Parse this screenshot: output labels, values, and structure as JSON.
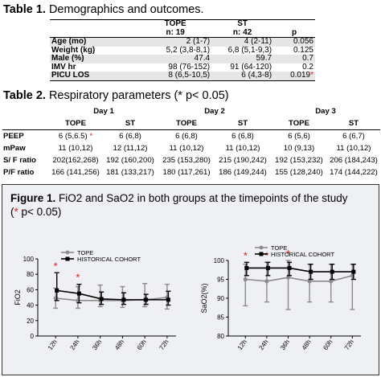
{
  "table1": {
    "title_bold": "Table 1.",
    "title_rest": " Demographics and outcomes.",
    "headers": {
      "tope": "TOPE",
      "tope_n": "n: 19",
      "st": "ST",
      "st_n": "n: 42",
      "p": "p"
    },
    "rows": [
      {
        "label": "Age (mo)",
        "tope": "2 (1-7)",
        "st": "4 (2-11)",
        "p": "0.056",
        "star": ""
      },
      {
        "label": "Weight (kg)",
        "tope": "5,2 (3,8-8,1)",
        "st": "6,8 (5,1-9,3)",
        "p": "0.125",
        "star": ""
      },
      {
        "label": "Male (%)",
        "tope": "47.4",
        "st": "59.7",
        "p": "0.7",
        "star": ""
      },
      {
        "label": "IMV hr",
        "tope": "98 (76-152)",
        "st": "91 (64-120)",
        "p": "0.2",
        "star": ""
      },
      {
        "label": "PICU LOS",
        "tope": "8 (6,5-10,5)",
        "st": "6 (4,3-8)",
        "p": "0.019",
        "star": "*"
      }
    ]
  },
  "table2": {
    "title_bold": "Table 2.",
    "title_rest": " Respiratory parameters (* p< 0.05)",
    "days": [
      "Day 1",
      "Day 2",
      "Day 3"
    ],
    "cols": [
      "TOPE",
      "ST",
      "TOPE",
      "ST",
      "TOPE",
      "ST"
    ],
    "rows": [
      {
        "label": "PEEP",
        "cells": [
          "6 (5,6.5)",
          "6 (6,8)",
          "6 (6,8)",
          "6 (6,8)",
          "6 (5,6)",
          "6 (6,7)"
        ],
        "star_col": 0
      },
      {
        "label": "mPaw",
        "cells": [
          "11 (10,12)",
          "12 (11,12)",
          "11 (10,12)",
          "11 (10,12)",
          "10 (9,13)",
          "11 (10,12)"
        ],
        "star_col": -1
      },
      {
        "label": "S/ F ratio",
        "cells": [
          "202(162,268)",
          "192 (160,200)",
          "235 (153,280)",
          "215 (190,242)",
          "192 (153,232)",
          "206 (184,243)"
        ],
        "star_col": -1
      },
      {
        "label": "P/F ratio",
        "cells": [
          "166 (141,256)",
          "181 (133,217)",
          "180 (117,261)",
          "186 (149,244)",
          "155 (128,240)",
          "174 (144,222)"
        ],
        "star_col": -1
      }
    ],
    "star": "*"
  },
  "figure1": {
    "title_bold": "Figure 1.",
    "title_rest": " FiO2 and SaO2 in both groups at the timepoints of the study",
    "title_line2_open": "(",
    "title_star": "*",
    "title_line2_rest": " p< 0.05)",
    "colors": {
      "tope": "#8c8c8c",
      "historical": "#000000",
      "star": "#e01b1b"
    }
  },
  "chart_data": [
    {
      "type": "line",
      "ylabel": "FiO2",
      "ylim": [
        0,
        100
      ],
      "yticks": [
        "0",
        "20",
        "40",
        "60",
        "80",
        "100"
      ],
      "categories": [
        "12h",
        "24h",
        "36h",
        "48h",
        "60h",
        "72h"
      ],
      "legend_position": "top-left",
      "series": [
        {
          "name": "TOPE",
          "values": [
            49,
            46,
            46,
            46,
            47,
            50
          ],
          "err_low": [
            36,
            36,
            38,
            37,
            38,
            35
          ],
          "err_high": [
            62,
            64,
            66,
            64,
            68,
            67
          ]
        },
        {
          "name": "HISTORICAL COHORT",
          "values": [
            59,
            55,
            48,
            47,
            47,
            47
          ],
          "err_low": [
            46,
            43,
            41,
            41,
            41,
            40
          ],
          "err_high": [
            82,
            67,
            57,
            56,
            54,
            58
          ]
        }
      ],
      "significant_at": [
        "12h",
        "24h"
      ]
    },
    {
      "type": "line",
      "ylabel": "SaO2(%)",
      "ylim": [
        80,
        100
      ],
      "yticks": [
        "80",
        "85",
        "90",
        "95",
        "100"
      ],
      "categories": [
        "12h",
        "24h",
        "36h",
        "48h",
        "60h",
        "72h"
      ],
      "legend_position": "top-left",
      "series": [
        {
          "name": "TOPE",
          "values": [
            95,
            94.5,
            95.5,
            94.5,
            94.5,
            96
          ],
          "err_low": [
            88,
            89,
            87,
            89,
            89,
            87
          ],
          "err_high": [
            99,
            99.5,
            100,
            99,
            99,
            99
          ]
        },
        {
          "name": "HISTORICAL COHORT",
          "values": [
            98,
            98,
            98,
            97,
            97,
            97
          ],
          "err_low": [
            96,
            96,
            96,
            95,
            95,
            95
          ],
          "err_high": [
            99.5,
            99.5,
            99.5,
            99,
            99,
            99
          ]
        }
      ],
      "significant_at": [
        "12h",
        "24h",
        "36h"
      ]
    }
  ]
}
